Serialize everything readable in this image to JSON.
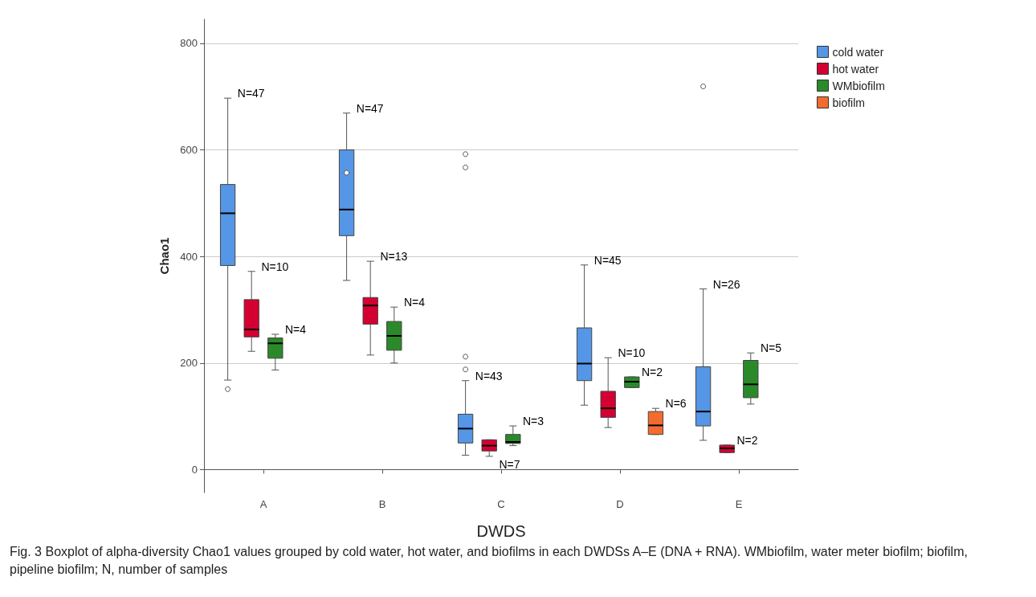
{
  "chart_data": {
    "type": "box",
    "xlabel": "DWDS",
    "ylabel": "Chao1",
    "categories": [
      "A",
      "B",
      "C",
      "D",
      "E"
    ],
    "ylim": [
      -43,
      845
    ],
    "yticks": [
      0,
      200,
      400,
      600,
      800
    ],
    "grid": "y",
    "legend": "top right",
    "annotations": [
      "Fig. 3 Boxplot of alpha-diversity Chao1 values grouped by cold water, hot water, and biofilms in each DWDSs A–E (DNA + RNA). WMbiofilm, water meter biofilm; biofilm, pipeline biofilm; N, number of samples"
    ],
    "series": [
      {
        "name": "cold water",
        "color": "#5596e6",
        "value_labels": [
          "N=47",
          "N=47",
          "N=43",
          "N=45",
          "N=26"
        ],
        "boxes": [
          {
            "low": 168,
            "q1": 383,
            "median": 481,
            "q3": 535,
            "high": 697,
            "outliers": [
              151
            ]
          },
          {
            "low": 355,
            "q1": 439,
            "median": 488,
            "q3": 600,
            "high": 669,
            "outliers": [
              557
            ]
          },
          {
            "low": 27,
            "q1": 50,
            "median": 77,
            "q3": 104,
            "high": 167,
            "outliers": [
              188,
              212,
              567,
              592
            ]
          },
          {
            "low": 121,
            "q1": 167,
            "median": 199,
            "q3": 266,
            "high": 384
          },
          {
            "low": 55,
            "q1": 82,
            "median": 109,
            "q3": 193,
            "high": 339,
            "outliers": [
              719
            ]
          }
        ]
      },
      {
        "name": "hot water",
        "color": "#d50032",
        "value_labels": [
          "N=10",
          "N=13",
          "N=7",
          "N=10",
          "N=2"
        ],
        "boxes": [
          {
            "low": 222,
            "q1": 249,
            "median": 263,
            "q3": 319,
            "high": 372
          },
          {
            "low": 215,
            "q1": 273,
            "median": 308,
            "q3": 323,
            "high": 391
          },
          {
            "low": 25,
            "q1": 35,
            "median": 45,
            "q3": 56,
            "high": 56
          },
          {
            "low": 79,
            "q1": 98,
            "median": 115,
            "q3": 147,
            "high": 210
          },
          {
            "low": 32,
            "q1": 32,
            "median": 40,
            "q3": 46,
            "high": 46
          }
        ]
      },
      {
        "name": "WMbiofilm",
        "color": "#2a8a2a",
        "value_labels": [
          "N=4",
          "N=4",
          "N=3",
          "N=2",
          "N=5"
        ],
        "boxes": [
          {
            "low": 187,
            "q1": 209,
            "median": 237,
            "q3": 247,
            "high": 254
          },
          {
            "low": 200,
            "q1": 224,
            "median": 251,
            "q3": 278,
            "high": 305
          },
          {
            "low": 45,
            "q1": 49,
            "median": 52,
            "q3": 66,
            "high": 82
          },
          {
            "low": 154,
            "q1": 154,
            "median": 165,
            "q3": 174,
            "high": 174
          },
          {
            "low": 123,
            "q1": 135,
            "median": 160,
            "q3": 205,
            "high": 219
          }
        ]
      },
      {
        "name": "biofilm",
        "color": "#f26b2f",
        "value_labels": [
          null,
          null,
          null,
          "N=6",
          null
        ],
        "boxes": [
          null,
          null,
          null,
          {
            "low": 66,
            "q1": 66,
            "median": 83,
            "q3": 109,
            "high": 115
          },
          null
        ]
      }
    ]
  }
}
